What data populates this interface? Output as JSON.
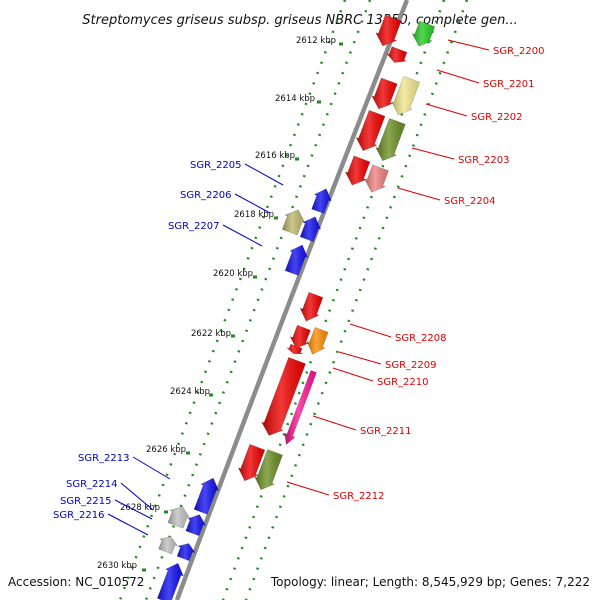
{
  "title": "Streptomyces griseus subsp. griseus NBRC 13350, complete gen...",
  "footer": {
    "accession": "Accession: NC_010572",
    "topology": "Topology: linear; Length: 8,545,929 bp; Genes: 7,222"
  },
  "colors": {
    "backbone": "#8c8c8c",
    "dots": "#1e8c1e",
    "reverse_label": "#0000cc",
    "forward_label": "#dd0000"
  },
  "ticks": [
    "2612 kbp",
    "2614 kbp",
    "2616 kbp",
    "2618 kbp",
    "2620 kbp",
    "2622 kbp",
    "2624 kbp",
    "2626 kbp",
    "2628 kbp",
    "2630 kbp"
  ],
  "genes": [
    {
      "label": "SGR_2200",
      "strand": "+",
      "color": "#22cc22"
    },
    {
      "label": "SGR_2201",
      "strand": "+",
      "color": "#ee0000"
    },
    {
      "label": "SGR_2202",
      "strand": "+",
      "color": "#f0e68c"
    },
    {
      "label": "SGR_2203",
      "strand": "+",
      "color": "#6b8e23"
    },
    {
      "label": "SGR_2204",
      "strand": "+",
      "color": "#f08080"
    },
    {
      "label": "SGR_2205",
      "strand": "-",
      "color": "#1010ee"
    },
    {
      "label": "SGR_2206",
      "strand": "-",
      "color": "#bdb76b"
    },
    {
      "label": "SGR_2207",
      "strand": "-",
      "color": "#1010ee"
    },
    {
      "label": "SGR_2208",
      "strand": "+",
      "color": "#ff8c00"
    },
    {
      "label": "SGR_2209",
      "strand": "+",
      "color": "#ee0000"
    },
    {
      "label": "SGR_2210",
      "strand": "+",
      "color": "#ee0000"
    },
    {
      "label": "SGR_2211",
      "strand": "+",
      "color": "#ff1493"
    },
    {
      "label": "SGR_2212",
      "strand": "+",
      "color": "#6b8e23"
    },
    {
      "label": "SGR_2213",
      "strand": "-",
      "color": "#1010ee"
    },
    {
      "label": "SGR_2214",
      "strand": "-",
      "color": "#c0c0c0"
    },
    {
      "label": "SGR_2215",
      "strand": "-",
      "color": "#1010ee"
    },
    {
      "label": "SGR_2216",
      "strand": "-",
      "color": "#c0c0c0"
    }
  ]
}
